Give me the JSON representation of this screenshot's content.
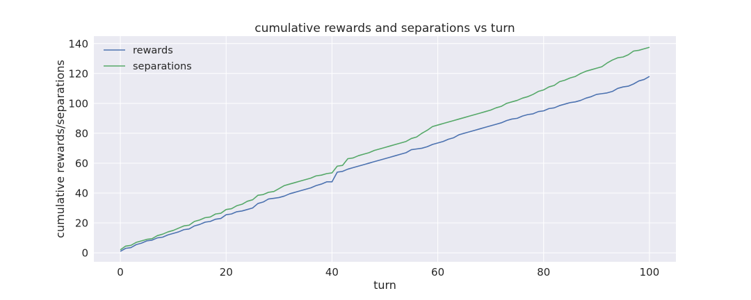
{
  "chart_data": {
    "type": "line",
    "title": "cumulative rewards and separations vs turn",
    "xlabel": "turn",
    "ylabel": "cumulative rewards/separations",
    "xlim": [
      -5,
      105
    ],
    "ylim": [
      -6,
      145
    ],
    "xticks": [
      0,
      20,
      40,
      60,
      80,
      100
    ],
    "yticks": [
      0,
      20,
      40,
      60,
      80,
      100,
      120,
      140
    ],
    "grid": true,
    "legend_position": "top-left",
    "background_color": "#eaeaf2",
    "series": [
      {
        "name": "rewards",
        "color": "#4c72b0",
        "points": [
          [
            0,
            1
          ],
          [
            1,
            3
          ],
          [
            2,
            3.5
          ],
          [
            3,
            5.5
          ],
          [
            4,
            6.5
          ],
          [
            5,
            8
          ],
          [
            6,
            8.5
          ],
          [
            7,
            10
          ],
          [
            8,
            10.5
          ],
          [
            9,
            12
          ],
          [
            10,
            13
          ],
          [
            11,
            14
          ],
          [
            12,
            15.5
          ],
          [
            13,
            16
          ],
          [
            14,
            18
          ],
          [
            15,
            19
          ],
          [
            16,
            20.5
          ],
          [
            17,
            21
          ],
          [
            18,
            22.5
          ],
          [
            19,
            23
          ],
          [
            20,
            25.5
          ],
          [
            21,
            26
          ],
          [
            22,
            27.5
          ],
          [
            23,
            28
          ],
          [
            24,
            29
          ],
          [
            25,
            30
          ],
          [
            26,
            33
          ],
          [
            27,
            34
          ],
          [
            28,
            36
          ],
          [
            29,
            36.5
          ],
          [
            30,
            37
          ],
          [
            31,
            38
          ],
          [
            32,
            39.5
          ],
          [
            33,
            40.5
          ],
          [
            34,
            41.5
          ],
          [
            35,
            42.5
          ],
          [
            36,
            43.5
          ],
          [
            37,
            45
          ],
          [
            38,
            46
          ],
          [
            39,
            47.5
          ],
          [
            40,
            47.5
          ],
          [
            41,
            54
          ],
          [
            42,
            54.5
          ],
          [
            43,
            56
          ],
          [
            44,
            57
          ],
          [
            45,
            58
          ],
          [
            46,
            59
          ],
          [
            47,
            60
          ],
          [
            48,
            61
          ],
          [
            49,
            62
          ],
          [
            50,
            63
          ],
          [
            51,
            64
          ],
          [
            52,
            65
          ],
          [
            53,
            66
          ],
          [
            54,
            67
          ],
          [
            55,
            69
          ],
          [
            56,
            69.5
          ],
          [
            57,
            70
          ],
          [
            58,
            71
          ],
          [
            59,
            72.5
          ],
          [
            60,
            73.5
          ],
          [
            61,
            74.5
          ],
          [
            62,
            76
          ],
          [
            63,
            77
          ],
          [
            64,
            79
          ],
          [
            65,
            80
          ],
          [
            66,
            81
          ],
          [
            67,
            82
          ],
          [
            68,
            83
          ],
          [
            69,
            84
          ],
          [
            70,
            85
          ],
          [
            71,
            86
          ],
          [
            72,
            87
          ],
          [
            73,
            88.5
          ],
          [
            74,
            89.5
          ],
          [
            75,
            90
          ],
          [
            76,
            91.5
          ],
          [
            77,
            92.5
          ],
          [
            78,
            93
          ],
          [
            79,
            94.5
          ],
          [
            80,
            95
          ],
          [
            81,
            96.5
          ],
          [
            82,
            97
          ],
          [
            83,
            98.5
          ],
          [
            84,
            99.5
          ],
          [
            85,
            100.5
          ],
          [
            86,
            101
          ],
          [
            87,
            102
          ],
          [
            88,
            103.5
          ],
          [
            89,
            104.5
          ],
          [
            90,
            106
          ],
          [
            91,
            106.5
          ],
          [
            92,
            107
          ],
          [
            93,
            108
          ],
          [
            94,
            110
          ],
          [
            95,
            111
          ],
          [
            96,
            111.5
          ],
          [
            97,
            113
          ],
          [
            98,
            115
          ],
          [
            99,
            116
          ],
          [
            100,
            118
          ]
        ]
      },
      {
        "name": "separations",
        "color": "#55a868",
        "points": [
          [
            0,
            2
          ],
          [
            1,
            4.5
          ],
          [
            2,
            5
          ],
          [
            3,
            7
          ],
          [
            4,
            8
          ],
          [
            5,
            9
          ],
          [
            6,
            9.5
          ],
          [
            7,
            11.5
          ],
          [
            8,
            12.5
          ],
          [
            9,
            14
          ],
          [
            10,
            15
          ],
          [
            11,
            16.5
          ],
          [
            12,
            18
          ],
          [
            13,
            18.5
          ],
          [
            14,
            21
          ],
          [
            15,
            22
          ],
          [
            16,
            23.5
          ],
          [
            17,
            24
          ],
          [
            18,
            26
          ],
          [
            19,
            26.5
          ],
          [
            20,
            29
          ],
          [
            21,
            29.5
          ],
          [
            22,
            31.5
          ],
          [
            23,
            32.5
          ],
          [
            24,
            34.5
          ],
          [
            25,
            35.5
          ],
          [
            26,
            38.5
          ],
          [
            27,
            39
          ],
          [
            28,
            40.5
          ],
          [
            29,
            41
          ],
          [
            30,
            43
          ],
          [
            31,
            45
          ],
          [
            32,
            46
          ],
          [
            33,
            47
          ],
          [
            34,
            48
          ],
          [
            35,
            49
          ],
          [
            36,
            50
          ],
          [
            37,
            51.5
          ],
          [
            38,
            52
          ],
          [
            39,
            53
          ],
          [
            40,
            53.5
          ],
          [
            41,
            58
          ],
          [
            42,
            58.5
          ],
          [
            43,
            63
          ],
          [
            44,
            63.5
          ],
          [
            45,
            65
          ],
          [
            46,
            66
          ],
          [
            47,
            67
          ],
          [
            48,
            68.5
          ],
          [
            49,
            69.5
          ],
          [
            50,
            70.5
          ],
          [
            51,
            71.5
          ],
          [
            52,
            72.5
          ],
          [
            53,
            73.5
          ],
          [
            54,
            74.5
          ],
          [
            55,
            76.5
          ],
          [
            56,
            77.5
          ],
          [
            57,
            80
          ],
          [
            58,
            82
          ],
          [
            59,
            84.5
          ],
          [
            60,
            85.5
          ],
          [
            61,
            86.5
          ],
          [
            62,
            87.5
          ],
          [
            63,
            88.5
          ],
          [
            64,
            89.5
          ],
          [
            65,
            90.5
          ],
          [
            66,
            91.5
          ],
          [
            67,
            92.5
          ],
          [
            68,
            93.5
          ],
          [
            69,
            94.5
          ],
          [
            70,
            95.5
          ],
          [
            71,
            97
          ],
          [
            72,
            98
          ],
          [
            73,
            100
          ],
          [
            74,
            101
          ],
          [
            75,
            102
          ],
          [
            76,
            103.5
          ],
          [
            77,
            104.5
          ],
          [
            78,
            106
          ],
          [
            79,
            108
          ],
          [
            80,
            109
          ],
          [
            81,
            111
          ],
          [
            82,
            112
          ],
          [
            83,
            114.5
          ],
          [
            84,
            115.5
          ],
          [
            85,
            117
          ],
          [
            86,
            118
          ],
          [
            87,
            120
          ],
          [
            88,
            121.5
          ],
          [
            89,
            122.5
          ],
          [
            90,
            123.5
          ],
          [
            91,
            124.5
          ],
          [
            92,
            127
          ],
          [
            93,
            129
          ],
          [
            94,
            130.5
          ],
          [
            95,
            131
          ],
          [
            96,
            132.5
          ],
          [
            97,
            135
          ],
          [
            98,
            135.5
          ],
          [
            99,
            136.5
          ],
          [
            100,
            137.5
          ]
        ]
      }
    ]
  }
}
